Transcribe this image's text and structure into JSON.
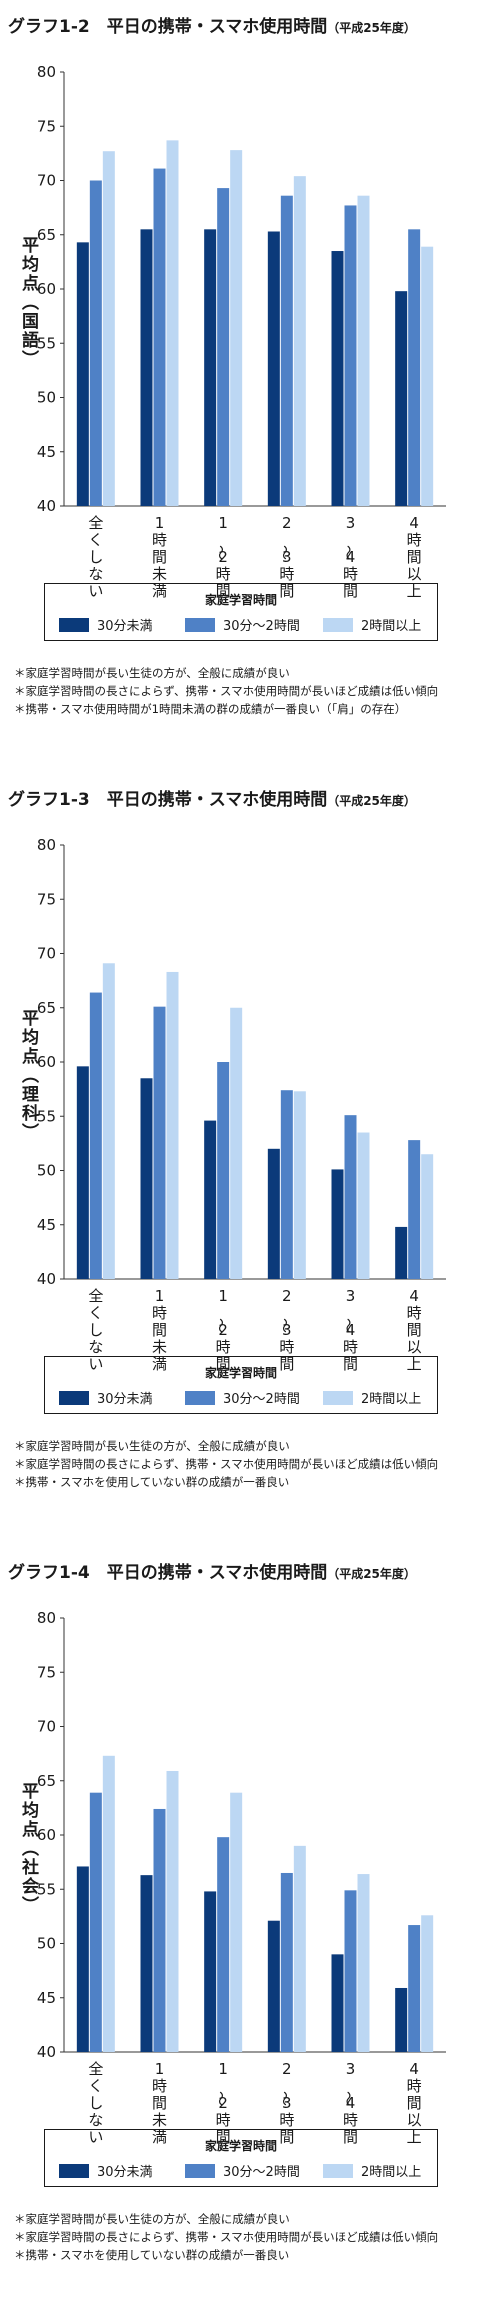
{
  "legend": {
    "title": "家庭学習時間",
    "items": [
      {
        "label": "30分未満",
        "color": "#0b3a7a"
      },
      {
        "label": "30分～2時間",
        "color": "#4f81c6"
      },
      {
        "label": "2時間以上",
        "color": "#bcd7f3"
      }
    ]
  },
  "charts": [
    {
      "title": "グラフ1-2　平日の携帯・スマホ使用時間",
      "subtitle": "（平成25年度）",
      "ylabel": "平均点（国語）",
      "notes": [
        "＊家庭学習時間が長い生徒の方が、全般に成績が良い",
        "＊家庭学習時間の長さによらず、携帯・スマホ使用時間が長いほど成績は低い傾向",
        "＊携帯・スマホ使用時間が1時間未満の群の成績が一番良い（「肩」の存在）"
      ]
    },
    {
      "title": "グラフ1-3　平日の携帯・スマホ使用時間",
      "subtitle": "（平成25年度）",
      "ylabel": "平均点（理科）",
      "notes": [
        "＊家庭学習時間が長い生徒の方が、全般に成績が良い",
        "＊家庭学習時間の長さによらず、携帯・スマホ使用時間が長いほど成績は低い傾向",
        "＊携帯・スマホを使用していない群の成績が一番良い"
      ]
    },
    {
      "title": "グラフ1-4　平日の携帯・スマホ使用時間",
      "subtitle": "（平成25年度）",
      "ylabel": "平均点（社会）",
      "notes": [
        "＊家庭学習時間が長い生徒の方が、全般に成績が良い",
        "＊家庭学習時間の長さによらず、携帯・スマホ使用時間が長いほど成績は低い傾向",
        "＊携帯・スマホを使用していない群の成績が一番良い"
      ]
    }
  ],
  "chart_data": [
    {
      "type": "bar",
      "categories": [
        "全くしない",
        "1時間未満",
        "1～2時間",
        "2～3時間",
        "3～4時間",
        "4時間以上"
      ],
      "series": [
        {
          "name": "30分未満",
          "values": [
            64.3,
            65.5,
            65.5,
            65.3,
            63.5,
            59.8
          ]
        },
        {
          "name": "30分～2時間",
          "values": [
            70.0,
            71.1,
            69.3,
            68.6,
            67.7,
            65.5
          ]
        },
        {
          "name": "2時間以上",
          "values": [
            72.7,
            73.7,
            72.8,
            70.4,
            68.6,
            63.9
          ]
        }
      ],
      "ylabel": "平均点（国語）",
      "ylim": [
        40,
        80
      ],
      "yticks": [
        40,
        45,
        50,
        55,
        60,
        65,
        70,
        75,
        80
      ],
      "grid": false,
      "legend": "bottom"
    },
    {
      "type": "bar",
      "categories": [
        "全くしない",
        "1時間未満",
        "1～2時間",
        "2～3時間",
        "3～4時間",
        "4時間以上"
      ],
      "series": [
        {
          "name": "30分未満",
          "values": [
            59.6,
            58.5,
            54.6,
            52.0,
            50.1,
            44.8
          ]
        },
        {
          "name": "30分～2時間",
          "values": [
            66.4,
            65.1,
            60.0,
            57.4,
            55.1,
            52.8
          ]
        },
        {
          "name": "2時間以上",
          "values": [
            69.1,
            68.3,
            65.0,
            57.3,
            53.5,
            51.5
          ]
        }
      ],
      "ylabel": "平均点（理科）",
      "ylim": [
        40,
        80
      ],
      "yticks": [
        40,
        45,
        50,
        55,
        60,
        65,
        70,
        75,
        80
      ],
      "grid": false,
      "legend": "bottom"
    },
    {
      "type": "bar",
      "categories": [
        "全くしない",
        "1時間未満",
        "1～2時間",
        "2～3時間",
        "3～4時間",
        "4時間以上"
      ],
      "series": [
        {
          "name": "30分未満",
          "values": [
            57.1,
            56.3,
            54.8,
            52.1,
            49.0,
            45.9
          ]
        },
        {
          "name": "30分～2時間",
          "values": [
            63.9,
            62.4,
            59.8,
            56.5,
            54.9,
            51.7
          ]
        },
        {
          "name": "2時間以上",
          "values": [
            67.3,
            65.9,
            63.9,
            59.0,
            56.4,
            52.6
          ]
        }
      ],
      "ylabel": "平均点（社会）",
      "ylim": [
        40,
        80
      ],
      "yticks": [
        40,
        45,
        50,
        55,
        60,
        65,
        70,
        75,
        80
      ],
      "grid": false,
      "legend": "bottom"
    }
  ]
}
